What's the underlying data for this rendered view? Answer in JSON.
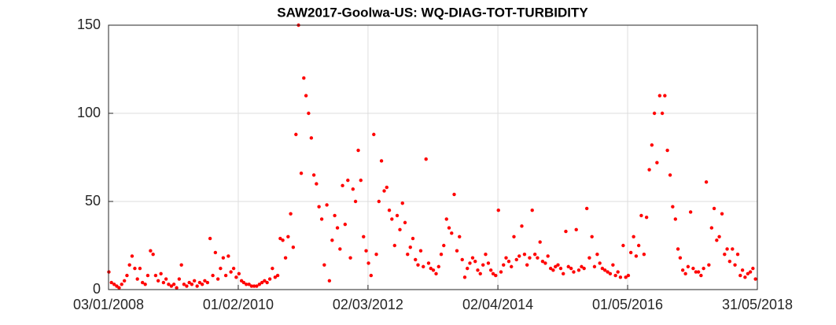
{
  "chart_data": {
    "type": "scatter",
    "title": "SAW2017-Goolwa-US: WQ-DIAG-TOT-TURBIDITY",
    "xlim": [
      "03/01/2008",
      "31/05/2018"
    ],
    "xticks": [
      "03/01/2008",
      "01/02/2010",
      "02/03/2012",
      "02/04/2014",
      "01/05/2016",
      "31/05/2018"
    ],
    "ylim": [
      0,
      150
    ],
    "yticks": [
      0,
      50,
      100,
      150
    ],
    "grid": true,
    "series": [
      {
        "color": "#ff0000",
        "x": [
          "05/01/2008",
          "20/01/2008",
          "05/02/2008",
          "20/02/2008",
          "05/03/2008",
          "20/03/2008",
          "05/04/2008",
          "20/04/2008",
          "05/05/2008",
          "20/05/2008",
          "05/06/2008",
          "20/06/2008",
          "05/07/2008",
          "20/07/2008",
          "05/08/2008",
          "20/08/2008",
          "05/09/2008",
          "20/09/2008",
          "05/10/2008",
          "20/10/2008",
          "05/11/2008",
          "20/11/2008",
          "05/12/2008",
          "20/12/2008",
          "05/01/2009",
          "20/01/2009",
          "05/02/2009",
          "20/02/2009",
          "05/03/2009",
          "20/03/2009",
          "05/04/2009",
          "20/04/2009",
          "05/05/2009",
          "20/05/2009",
          "05/06/2009",
          "20/06/2009",
          "05/07/2009",
          "20/07/2009",
          "05/08/2009",
          "20/08/2009",
          "05/09/2009",
          "20/09/2009",
          "05/10/2009",
          "20/10/2009",
          "05/11/2009",
          "20/11/2009",
          "05/12/2009",
          "20/12/2009",
          "05/01/2010",
          "20/01/2010",
          "05/02/2010",
          "20/02/2010",
          "05/03/2010",
          "20/03/2010",
          "05/04/2010",
          "20/04/2010",
          "05/05/2010",
          "20/05/2010",
          "05/06/2010",
          "20/06/2010",
          "05/07/2010",
          "20/07/2010",
          "05/08/2010",
          "20/08/2010",
          "05/09/2010",
          "20/09/2010",
          "05/10/2010",
          "20/10/2010",
          "05/11/2010",
          "20/11/2010",
          "05/12/2010",
          "20/12/2010",
          "05/01/2011",
          "20/01/2011",
          "05/02/2011",
          "20/02/2011",
          "05/03/2011",
          "20/03/2011",
          "05/04/2011",
          "20/04/2011",
          "05/05/2011",
          "20/05/2011",
          "05/06/2011",
          "20/06/2011",
          "05/07/2011",
          "20/07/2011",
          "05/08/2011",
          "20/08/2011",
          "05/09/2011",
          "20/09/2011",
          "05/10/2011",
          "20/10/2011",
          "05/11/2011",
          "20/11/2011",
          "05/12/2011",
          "20/12/2011",
          "05/01/2012",
          "20/01/2012",
          "05/02/2012",
          "20/02/2012",
          "05/03/2012",
          "20/03/2012",
          "05/04/2012",
          "20/04/2012",
          "05/05/2012",
          "20/05/2012",
          "05/06/2012",
          "20/06/2012",
          "05/07/2012",
          "20/07/2012",
          "05/08/2012",
          "20/08/2012",
          "05/09/2012",
          "20/09/2012",
          "05/10/2012",
          "20/10/2012",
          "05/11/2012",
          "20/11/2012",
          "05/12/2012",
          "20/12/2012",
          "05/01/2013",
          "20/01/2013",
          "05/02/2013",
          "20/02/2013",
          "05/03/2013",
          "20/03/2013",
          "05/04/2013",
          "20/04/2013",
          "05/05/2013",
          "20/05/2013",
          "05/06/2013",
          "20/06/2013",
          "05/07/2013",
          "20/07/2013",
          "05/08/2013",
          "20/08/2013",
          "05/09/2013",
          "20/09/2013",
          "05/10/2013",
          "20/10/2013",
          "05/11/2013",
          "20/11/2013",
          "05/12/2013",
          "20/12/2013",
          "05/01/2014",
          "20/01/2014",
          "05/02/2014",
          "20/02/2014",
          "05/03/2014",
          "20/03/2014",
          "05/04/2014",
          "20/04/2014",
          "05/05/2014",
          "20/05/2014",
          "05/06/2014",
          "20/06/2014",
          "05/07/2014",
          "20/07/2014",
          "05/08/2014",
          "20/08/2014",
          "05/09/2014",
          "20/09/2014",
          "05/10/2014",
          "20/10/2014",
          "05/11/2014",
          "20/11/2014",
          "05/12/2014",
          "20/12/2014",
          "05/01/2015",
          "20/01/2015",
          "05/02/2015",
          "20/02/2015",
          "05/03/2015",
          "20/03/2015",
          "05/04/2015",
          "20/04/2015",
          "05/05/2015",
          "20/05/2015",
          "05/06/2015",
          "20/06/2015",
          "05/07/2015",
          "20/07/2015",
          "05/08/2015",
          "20/08/2015",
          "05/09/2015",
          "20/09/2015",
          "05/10/2015",
          "20/10/2015",
          "05/11/2015",
          "20/11/2015",
          "05/12/2015",
          "20/12/2015",
          "05/01/2016",
          "20/01/2016",
          "05/02/2016",
          "20/02/2016",
          "05/03/2016",
          "20/03/2016",
          "05/04/2016",
          "20/04/2016",
          "05/05/2016",
          "20/05/2016",
          "05/06/2016",
          "20/06/2016",
          "05/07/2016",
          "20/07/2016",
          "05/08/2016",
          "20/08/2016",
          "05/09/2016",
          "20/09/2016",
          "05/10/2016",
          "20/10/2016",
          "05/11/2016",
          "20/11/2016",
          "05/12/2016",
          "20/12/2016",
          "05/01/2017",
          "20/01/2017",
          "05/02/2017",
          "20/02/2017",
          "05/03/2017",
          "20/03/2017",
          "05/04/2017",
          "20/04/2017",
          "05/05/2017",
          "20/05/2017",
          "05/06/2017",
          "20/06/2017",
          "05/07/2017",
          "20/07/2017",
          "05/08/2017",
          "20/08/2017",
          "05/09/2017",
          "20/09/2017",
          "05/10/2017",
          "20/10/2017",
          "05/11/2017",
          "20/11/2017",
          "05/12/2017",
          "20/12/2017",
          "05/01/2018",
          "20/01/2018",
          "05/02/2018",
          "20/02/2018",
          "05/03/2018",
          "20/03/2018",
          "05/04/2018",
          "20/04/2018",
          "05/05/2018",
          "20/05/2018"
        ],
        "values": [
          10,
          4,
          3,
          2,
          1,
          3,
          5,
          8,
          14,
          19,
          12,
          6,
          12,
          4,
          3,
          8,
          22,
          20,
          8,
          5,
          9,
          4,
          6,
          3,
          2,
          3,
          1,
          6,
          14,
          3,
          2,
          4,
          3,
          5,
          2,
          4,
          3,
          5,
          4,
          29,
          8,
          21,
          6,
          12,
          18,
          8,
          19,
          10,
          12,
          7,
          9,
          5,
          4,
          3,
          3,
          2,
          2,
          2,
          3,
          4,
          5,
          4,
          6,
          12,
          7,
          8,
          29,
          28,
          18,
          30,
          43,
          24,
          88,
          150,
          66,
          120,
          110,
          100,
          86,
          65,
          60,
          47,
          40,
          14,
          48,
          5,
          28,
          42,
          35,
          23,
          59,
          37,
          62,
          18,
          57,
          50,
          79,
          62,
          30,
          22,
          15,
          8,
          88,
          20,
          50,
          73,
          56,
          58,
          45,
          40,
          25,
          42,
          34,
          49,
          38,
          20,
          24,
          29,
          17,
          14,
          22,
          13,
          74,
          15,
          12,
          11,
          9,
          13,
          20,
          25,
          40,
          35,
          32,
          54,
          22,
          30,
          17,
          7,
          12,
          15,
          18,
          16,
          11,
          9,
          14,
          20,
          15,
          11,
          9,
          8,
          45,
          10,
          14,
          18,
          16,
          13,
          30,
          17,
          19,
          36,
          20,
          14,
          18,
          45,
          20,
          18,
          27,
          16,
          15,
          19,
          12,
          11,
          13,
          14,
          12,
          9,
          33,
          13,
          12,
          10,
          34,
          11,
          13,
          12,
          46,
          18,
          30,
          13,
          20,
          15,
          12,
          11,
          10,
          9,
          14,
          8,
          10,
          7,
          25,
          7,
          8,
          21,
          30,
          19,
          25,
          42,
          20,
          41,
          68,
          82,
          100,
          72,
          110,
          100,
          110,
          79,
          65,
          47,
          40,
          23,
          18,
          11,
          9,
          13,
          44,
          12,
          10,
          10,
          8,
          12,
          61,
          14,
          35,
          46,
          28,
          30,
          43,
          20,
          23,
          16,
          23,
          14,
          20,
          8,
          11,
          7,
          9,
          10,
          12,
          6
        ]
      }
    ]
  }
}
